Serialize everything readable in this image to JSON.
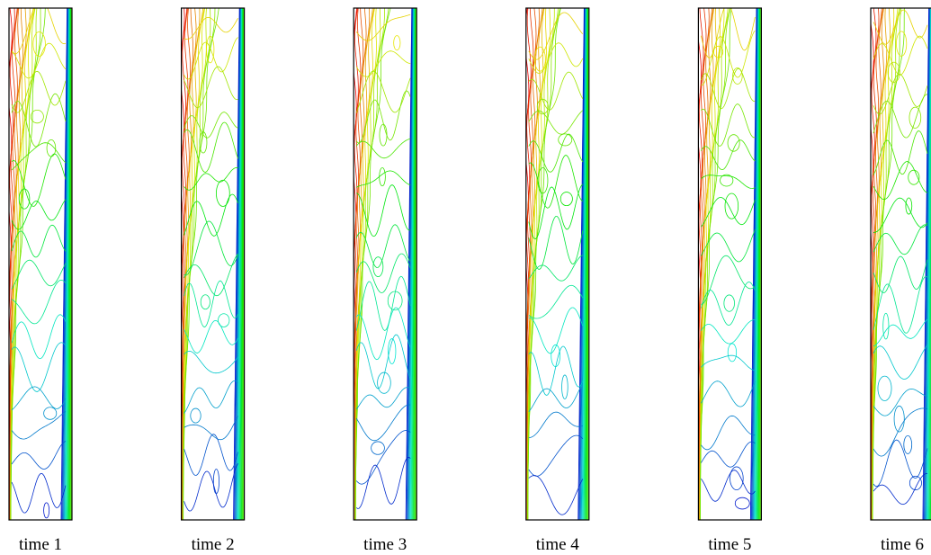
{
  "panels": [
    {
      "label": "time 1"
    },
    {
      "label": "time 2"
    },
    {
      "label": "time 3"
    },
    {
      "label": "time 4"
    },
    {
      "label": "time 5"
    },
    {
      "label": "time 6"
    }
  ]
}
